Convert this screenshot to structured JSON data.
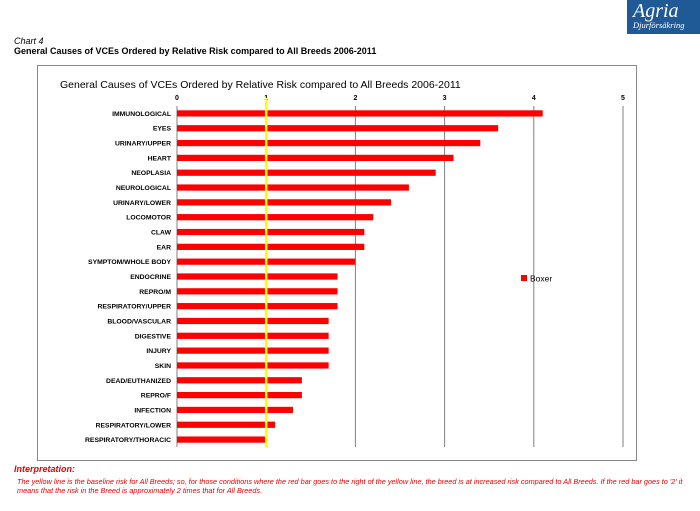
{
  "logo": {
    "brand": "Agria",
    "sub": "Djurförsäkring"
  },
  "header": {
    "chart_number": "Chart 4",
    "title": "General Causes of VCEs Ordered by Relative Risk compared to All Breeds 2006-2011"
  },
  "interpretation": {
    "title": "Interpretation:",
    "text": "The yellow line is the baseline risk for All Breeds; so, for those conditions where the red bar goes to the right of the yellow line, the breed is at increased risk compared to All Breeds.  If the red bar goes to '2' it means that the risk in the Breed is approximately 2 times that for All Breeds."
  },
  "colors": {
    "bar": "#ff0000",
    "baseline": "#ffff00",
    "gridline": "#7f7f7f"
  },
  "chart_data": {
    "type": "bar",
    "orientation": "horizontal",
    "title": "General Causes of VCEs Ordered by Relative Risk compared to All Breeds 2006-2011",
    "xlim": [
      0,
      5
    ],
    "xticks": [
      "0",
      "1",
      "2",
      "3",
      "4",
      "5"
    ],
    "grid": true,
    "baseline": 1,
    "legend": {
      "position": "right",
      "entries": [
        "Boxer"
      ]
    },
    "categories": [
      "IMMUNOLOGICAL",
      "EYES",
      "URINARY/UPPER",
      "HEART",
      "NEOPLASIA",
      "NEUROLOGICAL",
      "URINARY/LOWER",
      "LOCOMOTOR",
      "CLAW",
      "EAR",
      "SYMPTOM/WHOLE BODY",
      "ENDOCRINE",
      "REPRO/M",
      "RESPIRATORY/UPPER",
      "BLOOD/VASCULAR",
      "DIGESTIVE",
      "INJURY",
      "SKIN",
      "DEAD/EUTHANIZED",
      "REPRO/F",
      "INFECTION",
      "RESPIRATORY/LOWER",
      "RESPIRATORY/THORACIC"
    ],
    "series": [
      {
        "name": "Boxer",
        "values": [
          4.1,
          3.6,
          3.4,
          3.1,
          2.9,
          2.6,
          2.4,
          2.2,
          2.1,
          2.1,
          2.0,
          1.8,
          1.8,
          1.8,
          1.7,
          1.7,
          1.7,
          1.7,
          1.4,
          1.4,
          1.3,
          1.1,
          1.0
        ]
      }
    ]
  }
}
